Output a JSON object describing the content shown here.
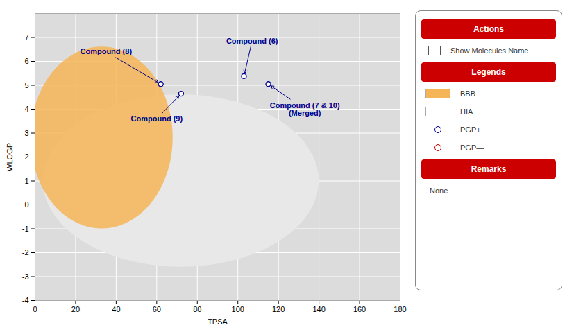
{
  "chart_data": {
    "type": "scatter",
    "xlabel": "TPSA",
    "ylabel": "WLOGP",
    "xlim": [
      0,
      180
    ],
    "ylim": [
      -4,
      8
    ],
    "xticks": [
      0,
      20,
      40,
      60,
      80,
      100,
      120,
      140,
      160,
      180
    ],
    "yticks": [
      -4,
      -3,
      -2,
      -1,
      0,
      1,
      2,
      3,
      4,
      5,
      6,
      7
    ],
    "grid": true,
    "regions": [
      {
        "name": "HIA",
        "cx": 72,
        "cy": 1.0,
        "rx": 68,
        "ry": 3.6,
        "color": "#e8e8e8"
      },
      {
        "name": "BBB",
        "cx": 33,
        "cy": 2.8,
        "rx": 35,
        "ry": 3.8,
        "color": "#f5b557"
      }
    ],
    "color": "#00008B",
    "marker": "circle",
    "points": [
      {
        "name": "Compound (8)",
        "x": 62,
        "y": 5.05,
        "label_x": 35,
        "label_y": 6.4
      },
      {
        "name": "Compound (9)",
        "x": 72,
        "y": 4.65,
        "label_x": 60,
        "label_y": 3.6
      },
      {
        "name": "Compound (6)",
        "x": 103,
        "y": 5.38,
        "label_x": 107,
        "label_y": 6.85
      },
      {
        "name": "Compound (7 & 10)\n(Merged)",
        "x": 115,
        "y": 5.05,
        "label_x": 133,
        "label_y": 4.0
      }
    ],
    "side_panel": {
      "color": "#cc0000",
      "sections": [
        {
          "title": "Actions",
          "items": [
            {
              "text": "Show Molecules Name",
              "marker": "checkbox"
            }
          ]
        },
        {
          "title": "Legends",
          "items": [
            {
              "text": "BBB",
              "marker": "square",
              "color": "#f5b557"
            },
            {
              "text": "HIA",
              "marker": "square",
              "color": "#ffffff"
            },
            {
              "text": "PGP+",
              "marker": "circle",
              "color": "#00008B"
            },
            {
              "text": "PGP—",
              "marker": "circle",
              "color": "#cc0000"
            }
          ]
        },
        {
          "title": "Remarks",
          "items": [
            {
              "text": "None"
            }
          ]
        }
      ]
    }
  }
}
